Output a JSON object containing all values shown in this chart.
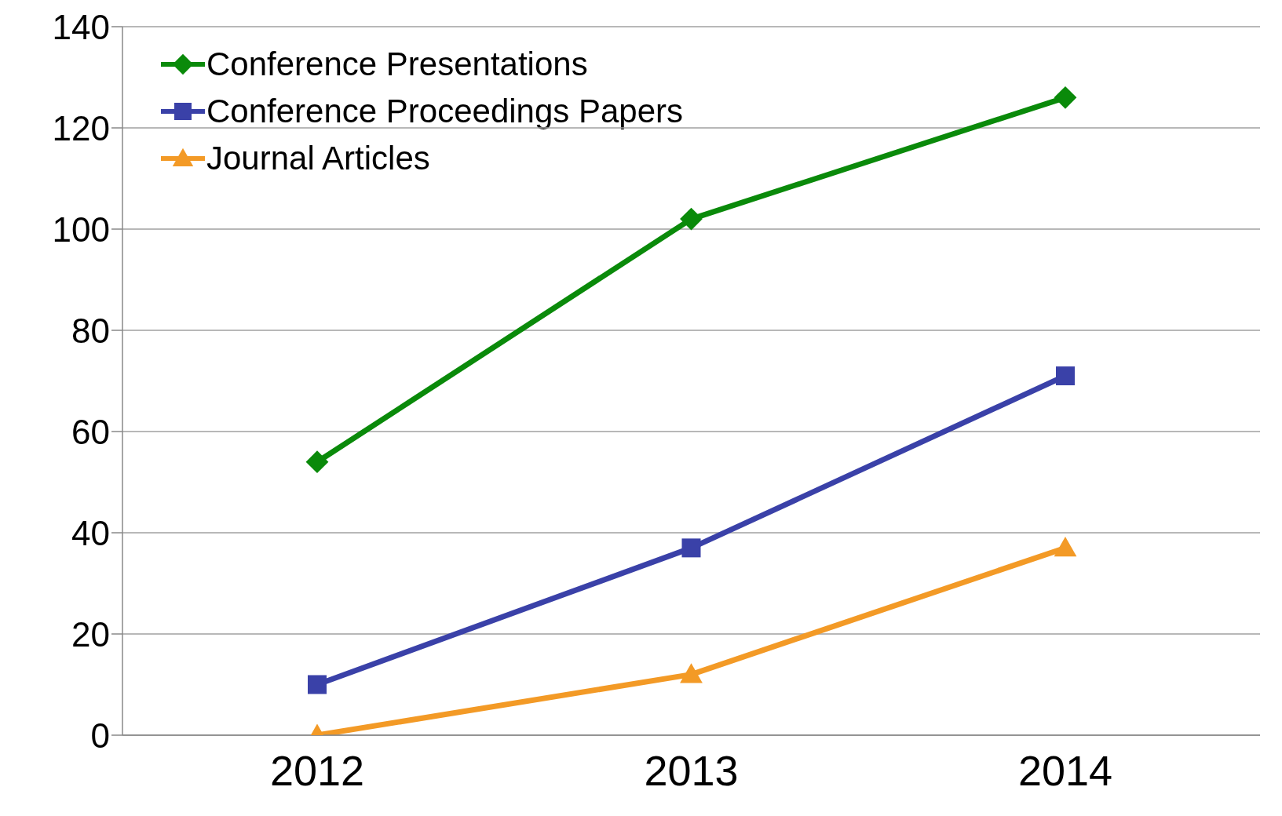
{
  "chart_data": {
    "type": "line",
    "categories": [
      "2012",
      "2013",
      "2014"
    ],
    "series": [
      {
        "name": "Conference Presentations",
        "color": "#0a8a0a",
        "marker": "diamond",
        "values": [
          54,
          102,
          126
        ]
      },
      {
        "name": "Conference Proceedings Papers",
        "color": "#3a41a8",
        "marker": "square",
        "values": [
          10,
          37,
          71
        ]
      },
      {
        "name": "Journal Articles",
        "color": "#f39a26",
        "marker": "triangle",
        "values": [
          0,
          12,
          37
        ]
      }
    ],
    "ylim": [
      0,
      140
    ],
    "yticks": [
      0,
      20,
      40,
      60,
      80,
      100,
      120,
      140
    ],
    "grid": "y",
    "legend": "top left",
    "line_style": "solid"
  }
}
